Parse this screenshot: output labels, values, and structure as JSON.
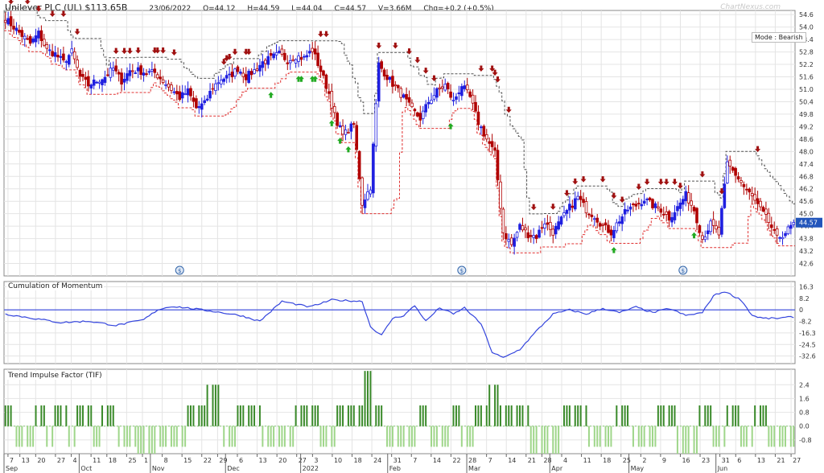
{
  "header": {
    "title": "Unilever PLC (UL) $113.65B",
    "date": "23/06/2022",
    "open": "O=44.12",
    "high": "H=44.59",
    "low": "L=44.04",
    "close": "C=44.57",
    "volume": "V=3.66M",
    "change": "Chg=+0.2 (+0.5%)",
    "brand": "ChartNexus.com",
    "mode": "Mode : Bearish"
  },
  "colors": {
    "bull": "#1f1fe0",
    "bear": "#b00000",
    "stop_dark": "#555555",
    "stop_red": "#e03030",
    "momentum": "#3344dd",
    "tif_pos": "#3a8a2a",
    "tif_neg": "#9fd68a",
    "grid": "#e4e4e4",
    "arrow_up": "#22aa22",
    "arrow_down": "#a01010",
    "last_price_badge": "#2255bb"
  },
  "chart_data": [
    {
      "type": "candlestick",
      "title": "",
      "ylim": [
        42.0,
        54.8
      ],
      "ticks": [
        "54.6",
        "54.0",
        "53.4",
        "52.8",
        "52.2",
        "51.6",
        "51.0",
        "50.4",
        "49.8",
        "49.2",
        "48.6",
        "48.0",
        "47.4",
        "46.8",
        "46.2",
        "45.6",
        "45.0",
        "44.4",
        "43.8",
        "43.2",
        "42.6"
      ],
      "last_price": "44.57",
      "anchors": [
        [
          0,
          54.4
        ],
        [
          3,
          54.0
        ],
        [
          6,
          53.6
        ],
        [
          9,
          53.2
        ],
        [
          12,
          53.7
        ],
        [
          15,
          52.9
        ],
        [
          18,
          52.7
        ],
        [
          21,
          52.3
        ],
        [
          24,
          52.8
        ],
        [
          27,
          51.6
        ],
        [
          30,
          51.2
        ],
        [
          33,
          51.4
        ],
        [
          36,
          51.6
        ],
        [
          39,
          52.0
        ],
        [
          42,
          51.4
        ],
        [
          45,
          51.9
        ],
        [
          48,
          51.9
        ],
        [
          51,
          51.8
        ],
        [
          54,
          51.8
        ],
        [
          57,
          51.4
        ],
        [
          60,
          51.0
        ],
        [
          63,
          50.6
        ],
        [
          66,
          50.9
        ],
        [
          69,
          50.1
        ],
        [
          72,
          50.3
        ],
        [
          75,
          51.1
        ],
        [
          78,
          51.5
        ],
        [
          81,
          51.6
        ],
        [
          84,
          52.0
        ],
        [
          87,
          51.6
        ],
        [
          90,
          51.9
        ],
        [
          93,
          52.3
        ],
        [
          96,
          52.5
        ],
        [
          99,
          52.7
        ],
        [
          102,
          52.4
        ],
        [
          105,
          52.6
        ],
        [
          108,
          52.5
        ],
        [
          111,
          52.9
        ],
        [
          114,
          51.9
        ],
        [
          117,
          50.8
        ],
        [
          120,
          49.2
        ],
        [
          123,
          48.9
        ],
        [
          126,
          49.3
        ],
        [
          129,
          45.5
        ],
        [
          132,
          46.3
        ],
        [
          135,
          52.2
        ],
        [
          138,
          51.6
        ],
        [
          141,
          51.1
        ],
        [
          144,
          50.6
        ],
        [
          147,
          50.0
        ],
        [
          150,
          49.6
        ],
        [
          153,
          50.4
        ],
        [
          156,
          50.9
        ],
        [
          159,
          51.2
        ],
        [
          162,
          50.4
        ],
        [
          165,
          51.2
        ],
        [
          168,
          50.6
        ],
        [
          171,
          49.4
        ],
        [
          174,
          48.6
        ],
        [
          177,
          47.9
        ],
        [
          180,
          44.1
        ],
        [
          183,
          43.5
        ],
        [
          186,
          44.4
        ],
        [
          189,
          44.0
        ],
        [
          192,
          43.9
        ],
        [
          195,
          44.6
        ],
        [
          198,
          44.1
        ],
        [
          201,
          44.7
        ],
        [
          204,
          45.3
        ],
        [
          207,
          45.8
        ],
        [
          210,
          45.2
        ],
        [
          213,
          44.9
        ],
        [
          216,
          44.4
        ],
        [
          219,
          44.1
        ],
        [
          222,
          44.7
        ],
        [
          225,
          45.2
        ],
        [
          228,
          45.4
        ],
        [
          231,
          45.7
        ],
        [
          234,
          45.4
        ],
        [
          237,
          45.2
        ],
        [
          240,
          44.8
        ],
        [
          243,
          45.3
        ],
        [
          246,
          45.9
        ],
        [
          249,
          45.2
        ],
        [
          252,
          43.8
        ],
        [
          255,
          44.5
        ],
        [
          258,
          44.0
        ],
        [
          261,
          47.4
        ],
        [
          264,
          46.9
        ],
        [
          267,
          46.3
        ],
        [
          270,
          45.8
        ],
        [
          273,
          45.2
        ],
        [
          276,
          44.6
        ],
        [
          279,
          43.8
        ],
        [
          282,
          44.1
        ],
        [
          285,
          44.5
        ]
      ],
      "buy_arrows": [
        96,
        106,
        107,
        111,
        112,
        118,
        121,
        124,
        161,
        220,
        249
      ],
      "sell_arrows": [
        2,
        8,
        12,
        17,
        21,
        26,
        40,
        43,
        45,
        48,
        54,
        55,
        57,
        61,
        79,
        80,
        81,
        83,
        87,
        88,
        114,
        116,
        135,
        141,
        146,
        149,
        152,
        155,
        172,
        176,
        177,
        178,
        182,
        191,
        198,
        203,
        206,
        209,
        216,
        220,
        223,
        229,
        232,
        237,
        239,
        242,
        244,
        252,
        259,
        272
      ],
      "event_markers": [
        63,
        165,
        245
      ]
    },
    {
      "type": "line",
      "title": "Cumulation of Momentum",
      "ylim": [
        -38.0,
        20.0
      ],
      "ticks": [
        "16.3",
        "8.2",
        "0",
        "-8.2",
        "-16.3",
        "-24.5",
        "-32.6"
      ],
      "baseline": 0,
      "anchors": [
        [
          0,
          -3.0
        ],
        [
          10,
          -6.0
        ],
        [
          20,
          -9.0
        ],
        [
          30,
          -8.0
        ],
        [
          40,
          -11.0
        ],
        [
          50,
          -7.0
        ],
        [
          55,
          0.0
        ],
        [
          60,
          2.5
        ],
        [
          65,
          1.5
        ],
        [
          75,
          -1.0
        ],
        [
          85,
          -4.0
        ],
        [
          92,
          -8.0
        ],
        [
          100,
          6.0
        ],
        [
          110,
          2.0
        ],
        [
          118,
          7.0
        ],
        [
          129,
          6.0
        ],
        [
          132,
          -12.0
        ],
        [
          136,
          -18.0
        ],
        [
          140,
          -6.0
        ],
        [
          144,
          -4.0
        ],
        [
          148,
          3.0
        ],
        [
          152,
          -8.0
        ],
        [
          157,
          1.5
        ],
        [
          162,
          -3.0
        ],
        [
          166,
          1.5
        ],
        [
          172,
          -10.0
        ],
        [
          176,
          -30.0
        ],
        [
          180,
          -34.0
        ],
        [
          186,
          -28.0
        ],
        [
          192,
          -15.0
        ],
        [
          198,
          -3.0
        ],
        [
          204,
          0.0
        ],
        [
          210,
          -3.0
        ],
        [
          216,
          1.0
        ],
        [
          222,
          -2.0
        ],
        [
          228,
          2.0
        ],
        [
          234,
          -2.0
        ],
        [
          240,
          1.0
        ],
        [
          246,
          -4.0
        ],
        [
          252,
          -2.0
        ],
        [
          256,
          10.0
        ],
        [
          260,
          13.0
        ],
        [
          266,
          7.0
        ],
        [
          270,
          -4.0
        ],
        [
          274,
          -6.0
        ],
        [
          279,
          -6.0
        ],
        [
          285,
          -5.0
        ]
      ]
    },
    {
      "type": "bar",
      "title": "Trend Impulse Factor (TIF)",
      "ylim": [
        -1.6,
        3.3
      ],
      "ticks": [
        "2.4",
        "1.6",
        "0.8",
        "0.0",
        "-0.8"
      ],
      "segments": [
        [
          0,
          3,
          1.2
        ],
        [
          4,
          10,
          -1.2
        ],
        [
          11,
          14,
          1.2
        ],
        [
          15,
          17,
          -1.2
        ],
        [
          18,
          22,
          1.2
        ],
        [
          23,
          25,
          -1.2
        ],
        [
          26,
          31,
          1.2
        ],
        [
          32,
          34,
          -1.2
        ],
        [
          35,
          40,
          1.2
        ],
        [
          41,
          47,
          -1.2
        ],
        [
          48,
          55,
          -1.6
        ],
        [
          56,
          65,
          -1.2
        ],
        [
          66,
          72,
          1.2
        ],
        [
          73,
          78,
          2.4
        ],
        [
          79,
          83,
          -1.2
        ],
        [
          84,
          92,
          1.2
        ],
        [
          93,
          104,
          -1.2
        ],
        [
          105,
          113,
          1.2
        ],
        [
          114,
          119,
          -1.2
        ],
        [
          120,
          129,
          1.2
        ],
        [
          130,
          133,
          3.2
        ],
        [
          134,
          137,
          1.2
        ],
        [
          138,
          149,
          -1.2
        ],
        [
          150,
          153,
          1.2
        ],
        [
          154,
          161,
          -1.2
        ],
        [
          162,
          164,
          1.2
        ],
        [
          165,
          169,
          -1.2
        ],
        [
          170,
          174,
          1.2
        ],
        [
          175,
          178,
          2.4
        ],
        [
          179,
          189,
          1.2
        ],
        [
          190,
          201,
          -1.6
        ],
        [
          202,
          210,
          1.2
        ],
        [
          211,
          220,
          -1.2
        ],
        [
          221,
          226,
          1.2
        ],
        [
          227,
          235,
          -1.2
        ],
        [
          236,
          242,
          1.2
        ],
        [
          243,
          250,
          -1.6
        ],
        [
          251,
          255,
          1.2
        ],
        [
          256,
          260,
          -1.2
        ],
        [
          261,
          265,
          1.2
        ],
        [
          266,
          270,
          -1.2
        ],
        [
          271,
          275,
          1.2
        ],
        [
          276,
          285,
          -1.2
        ]
      ]
    }
  ],
  "xaxis": {
    "day_labels": [
      {
        "label": "7",
        "i": 1
      },
      {
        "label": "13",
        "i": 4
      },
      {
        "label": "20",
        "i": 8
      },
      {
        "label": "27",
        "i": 13
      },
      {
        "label": "4",
        "i": 17
      },
      {
        "label": "11",
        "i": 22
      },
      {
        "label": "18",
        "i": 26
      },
      {
        "label": "25",
        "i": 31
      },
      {
        "label": "1",
        "i": 35
      },
      {
        "label": "8",
        "i": 40
      },
      {
        "label": "15",
        "i": 45
      },
      {
        "label": "22",
        "i": 50
      },
      {
        "label": "29",
        "i": 54
      },
      {
        "label": "6",
        "i": 59
      },
      {
        "label": "13",
        "i": 64
      },
      {
        "label": "20",
        "i": 69
      },
      {
        "label": "27",
        "i": 74
      },
      {
        "label": "3",
        "i": 78
      },
      {
        "label": "10",
        "i": 83
      },
      {
        "label": "18",
        "i": 88
      },
      {
        "label": "24",
        "i": 93
      },
      {
        "label": "31",
        "i": 98
      },
      {
        "label": "7",
        "i": 103
      },
      {
        "label": "14",
        "i": 108
      },
      {
        "label": "22",
        "i": 113
      },
      {
        "label": "28",
        "i": 117
      },
      {
        "label": "7",
        "i": 122
      },
      {
        "label": "14",
        "i": 127
      },
      {
        "label": "21",
        "i": 132
      },
      {
        "label": "28",
        "i": 136
      },
      {
        "label": "4",
        "i": 141
      },
      {
        "label": "11",
        "i": 146
      },
      {
        "label": "18",
        "i": 151
      },
      {
        "label": "25",
        "i": 156
      },
      {
        "label": "2",
        "i": 161
      },
      {
        "label": "9",
        "i": 166
      },
      {
        "label": "16",
        "i": 171
      },
      {
        "label": "23",
        "i": 176
      },
      {
        "label": "31",
        "i": 181
      },
      {
        "label": "6",
        "i": 185
      },
      {
        "label": "13",
        "i": 190
      },
      {
        "label": "21",
        "i": 195
      },
      {
        "label": "27",
        "i": 199
      }
    ],
    "month_labels": [
      {
        "label": "Sep",
        "i": 0
      },
      {
        "label": "Oct",
        "i": 19
      },
      {
        "label": "Nov",
        "i": 37
      },
      {
        "label": "Dec",
        "i": 56
      },
      {
        "label": "2022",
        "i": 75
      },
      {
        "label": "Feb",
        "i": 97
      },
      {
        "label": "Mar",
        "i": 117
      },
      {
        "label": "Apr",
        "i": 138
      },
      {
        "label": "May",
        "i": 158
      },
      {
        "label": "Jun",
        "i": 180
      }
    ]
  }
}
